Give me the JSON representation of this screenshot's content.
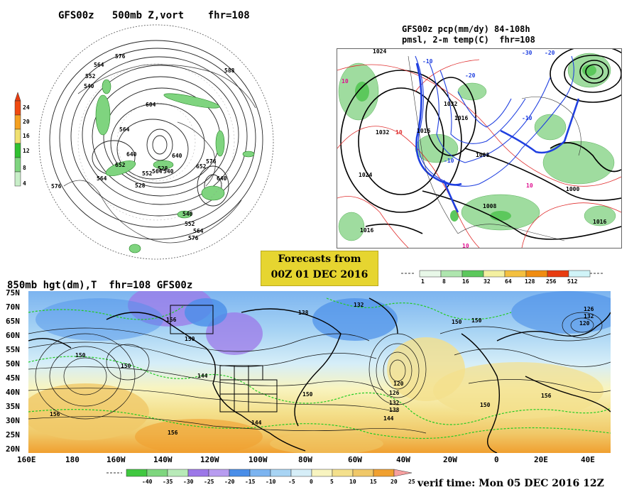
{
  "panels": {
    "top_left": {
      "title": "GFS00z   500mb Z,vort    fhr=108",
      "contour_labels": [
        "576",
        "564",
        "552",
        "540",
        "604",
        "588",
        "564",
        "640",
        "652",
        "528",
        "564",
        "576",
        "552",
        "564",
        "540",
        "576",
        "652",
        "640",
        "640",
        "528",
        "540",
        "552",
        "564",
        "576"
      ],
      "colorbar": {
        "values": [
          "24",
          "20",
          "16",
          "12",
          "8",
          "4"
        ],
        "colors": [
          "#f04a10",
          "#f4a020",
          "#f0e070",
          "#30c030",
          "#7fd47f",
          "#c8eec8"
        ]
      }
    },
    "top_right": {
      "title_line1": "GFS00z pcp(mm/dy) 84-108h",
      "title_line2": "pmsl, 2-m temp(C)  fhr=108",
      "contour_labels": [
        "1024",
        "1032",
        "1016",
        "1024",
        "1032",
        "1016",
        "1008",
        "1008",
        "1016",
        "1000",
        "1016"
      ],
      "temp_labels": [
        "10",
        "-10",
        "-20",
        "10",
        "10",
        "-30",
        "-20",
        "-10",
        "-10",
        "10"
      ],
      "colorbar": {
        "values": [
          "1",
          "8",
          "16",
          "32",
          "64",
          "128",
          "256",
          "512"
        ],
        "colors": [
          "#e8f8e8",
          "#aee6ae",
          "#5cc85c",
          "#f4f0a0",
          "#f4c040",
          "#f08c10",
          "#e83c10",
          "#d0f4f8"
        ]
      }
    },
    "forecast_box": {
      "line1": "Forecasts from",
      "line2": "00Z 01 DEC 2016"
    },
    "bottom": {
      "title": "850mb hgt(dm),T  fhr=108 GFS00z",
      "lat_labels": [
        "75N",
        "70N",
        "65N",
        "60N",
        "55N",
        "50N",
        "45N",
        "40N",
        "35N",
        "30N",
        "25N",
        "20N"
      ],
      "lon_labels": [
        "160E",
        "180",
        "160W",
        "140W",
        "120W",
        "100W",
        "80W",
        "60W",
        "40W",
        "20W",
        "0",
        "20E",
        "40E"
      ],
      "contour_labels": [
        "150",
        "150",
        "156",
        "150",
        "138",
        "132",
        "144",
        "150",
        "120",
        "126",
        "132",
        "138",
        "144",
        "150",
        "156",
        "156",
        "156",
        "144",
        "150",
        "150",
        "126",
        "132",
        "120"
      ],
      "colorbar": {
        "values": [
          "-40",
          "-35",
          "-30",
          "-25",
          "-20",
          "-15",
          "-10",
          "-5",
          "0",
          "5",
          "10",
          "15",
          "20",
          "25"
        ],
        "colors": [
          "#40c840",
          "#7ed67e",
          "#b8eab8",
          "#9c78e8",
          "#b89cf0",
          "#4a8ee8",
          "#7cb4f0",
          "#a8d4f4",
          "#d6eef8",
          "#f8f4c0",
          "#f4e08c",
          "#f0c868",
          "#f0a030",
          "#e84010",
          "#f7a0a0"
        ]
      },
      "verif_time": "verif time: Mon 05 DEC 2016 12Z"
    }
  }
}
